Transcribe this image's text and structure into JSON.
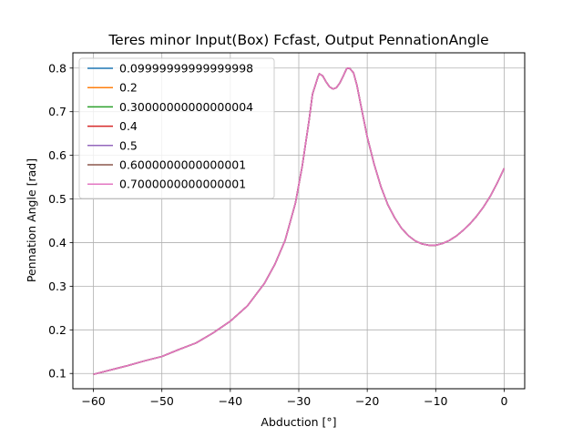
{
  "chart_data": {
    "type": "line",
    "title": "Teres minor Input(Box) Fcfast, Output PennationAngle",
    "xlabel": "Abduction [°]",
    "ylabel": "Pennation Angle [rad]",
    "xlim": [
      -63,
      3
    ],
    "ylim": [
      0.065,
      0.835
    ],
    "grid": true,
    "legend_position": "upper-left",
    "x_ticks": [
      -60,
      -50,
      -40,
      -30,
      -20,
      -10,
      0
    ],
    "x_tick_labels": [
      "−60",
      "−50",
      "−40",
      "−30",
      "−20",
      "−10",
      "0"
    ],
    "y_ticks": [
      0.1,
      0.2,
      0.3,
      0.4,
      0.5,
      0.6,
      0.7,
      0.8
    ],
    "y_tick_labels": [
      "0.1",
      "0.2",
      "0.3",
      "0.4",
      "0.5",
      "0.6",
      "0.7",
      "0.8"
    ],
    "x": [
      -60,
      -57.5,
      -55,
      -52.5,
      -50,
      -47.5,
      -45,
      -42.5,
      -40,
      -37.5,
      -35,
      -33.5,
      -32,
      -30.5,
      -29.5,
      -28.5,
      -28,
      -27.5,
      -27.2,
      -27,
      -26.5,
      -26,
      -25.5,
      -25,
      -24.5,
      -24,
      -23.5,
      -23,
      -22.6,
      -22,
      -21.5,
      -21,
      -20,
      -19,
      -18,
      -17,
      -16,
      -15,
      -14,
      -13,
      -12,
      -11,
      -10,
      -9,
      -8,
      -7,
      -6,
      -5,
      -4,
      -3,
      -2,
      -1,
      0
    ],
    "series": [
      {
        "name": "0.09999999999999998",
        "color": "#1f77b4",
        "values": [
          0.098,
          0.108,
          0.118,
          0.129,
          0.139,
          0.155,
          0.17,
          0.193,
          0.22,
          0.255,
          0.307,
          0.35,
          0.405,
          0.49,
          0.575,
          0.68,
          0.74,
          0.765,
          0.78,
          0.787,
          0.782,
          0.768,
          0.757,
          0.752,
          0.755,
          0.766,
          0.782,
          0.799,
          0.8,
          0.789,
          0.76,
          0.72,
          0.642,
          0.58,
          0.528,
          0.487,
          0.457,
          0.433,
          0.416,
          0.404,
          0.397,
          0.394,
          0.394,
          0.398,
          0.405,
          0.415,
          0.428,
          0.443,
          0.461,
          0.482,
          0.507,
          0.537,
          0.57
        ]
      },
      {
        "name": "0.2",
        "color": "#ff7f0e",
        "values": [
          0.098,
          0.108,
          0.118,
          0.129,
          0.139,
          0.155,
          0.17,
          0.193,
          0.22,
          0.255,
          0.307,
          0.35,
          0.405,
          0.49,
          0.575,
          0.68,
          0.74,
          0.765,
          0.78,
          0.787,
          0.782,
          0.768,
          0.757,
          0.752,
          0.755,
          0.766,
          0.782,
          0.799,
          0.8,
          0.789,
          0.76,
          0.72,
          0.642,
          0.58,
          0.528,
          0.487,
          0.457,
          0.433,
          0.416,
          0.404,
          0.397,
          0.394,
          0.394,
          0.398,
          0.405,
          0.415,
          0.428,
          0.443,
          0.461,
          0.482,
          0.507,
          0.537,
          0.57
        ]
      },
      {
        "name": "0.30000000000000004",
        "color": "#2ca02c",
        "values": [
          0.098,
          0.108,
          0.118,
          0.129,
          0.139,
          0.155,
          0.17,
          0.193,
          0.22,
          0.255,
          0.307,
          0.35,
          0.405,
          0.49,
          0.575,
          0.68,
          0.74,
          0.765,
          0.78,
          0.787,
          0.782,
          0.768,
          0.757,
          0.752,
          0.755,
          0.766,
          0.782,
          0.799,
          0.8,
          0.789,
          0.76,
          0.72,
          0.642,
          0.58,
          0.528,
          0.487,
          0.457,
          0.433,
          0.416,
          0.404,
          0.397,
          0.394,
          0.394,
          0.398,
          0.405,
          0.415,
          0.428,
          0.443,
          0.461,
          0.482,
          0.507,
          0.537,
          0.57
        ]
      },
      {
        "name": "0.4",
        "color": "#d62728",
        "values": [
          0.098,
          0.108,
          0.118,
          0.129,
          0.139,
          0.155,
          0.17,
          0.193,
          0.22,
          0.255,
          0.307,
          0.35,
          0.405,
          0.49,
          0.575,
          0.68,
          0.74,
          0.765,
          0.78,
          0.787,
          0.782,
          0.768,
          0.757,
          0.752,
          0.755,
          0.766,
          0.782,
          0.799,
          0.8,
          0.789,
          0.76,
          0.72,
          0.642,
          0.58,
          0.528,
          0.487,
          0.457,
          0.433,
          0.416,
          0.404,
          0.397,
          0.394,
          0.394,
          0.398,
          0.405,
          0.415,
          0.428,
          0.443,
          0.461,
          0.482,
          0.507,
          0.537,
          0.57
        ]
      },
      {
        "name": "0.5",
        "color": "#9467bd",
        "values": [
          0.098,
          0.108,
          0.118,
          0.129,
          0.139,
          0.155,
          0.17,
          0.193,
          0.22,
          0.255,
          0.307,
          0.35,
          0.405,
          0.49,
          0.575,
          0.68,
          0.74,
          0.765,
          0.78,
          0.787,
          0.782,
          0.768,
          0.757,
          0.752,
          0.755,
          0.766,
          0.782,
          0.799,
          0.8,
          0.789,
          0.76,
          0.72,
          0.642,
          0.58,
          0.528,
          0.487,
          0.457,
          0.433,
          0.416,
          0.404,
          0.397,
          0.394,
          0.394,
          0.398,
          0.405,
          0.415,
          0.428,
          0.443,
          0.461,
          0.482,
          0.507,
          0.537,
          0.57
        ]
      },
      {
        "name": "0.6000000000000001",
        "color": "#8c564b",
        "values": [
          0.098,
          0.108,
          0.118,
          0.129,
          0.139,
          0.155,
          0.17,
          0.193,
          0.22,
          0.255,
          0.307,
          0.35,
          0.405,
          0.49,
          0.575,
          0.68,
          0.74,
          0.765,
          0.78,
          0.787,
          0.782,
          0.768,
          0.757,
          0.752,
          0.755,
          0.766,
          0.782,
          0.799,
          0.8,
          0.789,
          0.76,
          0.72,
          0.642,
          0.58,
          0.528,
          0.487,
          0.457,
          0.433,
          0.416,
          0.404,
          0.397,
          0.394,
          0.394,
          0.398,
          0.405,
          0.415,
          0.428,
          0.443,
          0.461,
          0.482,
          0.507,
          0.537,
          0.57
        ]
      },
      {
        "name": "0.7000000000000001",
        "color": "#e377c2",
        "values": [
          0.098,
          0.108,
          0.118,
          0.129,
          0.139,
          0.155,
          0.17,
          0.193,
          0.22,
          0.255,
          0.307,
          0.35,
          0.405,
          0.49,
          0.575,
          0.68,
          0.74,
          0.765,
          0.78,
          0.787,
          0.782,
          0.768,
          0.757,
          0.752,
          0.755,
          0.766,
          0.782,
          0.799,
          0.8,
          0.789,
          0.76,
          0.72,
          0.642,
          0.58,
          0.528,
          0.487,
          0.457,
          0.433,
          0.416,
          0.404,
          0.397,
          0.394,
          0.394,
          0.398,
          0.405,
          0.415,
          0.428,
          0.443,
          0.461,
          0.482,
          0.507,
          0.537,
          0.57
        ]
      }
    ]
  }
}
